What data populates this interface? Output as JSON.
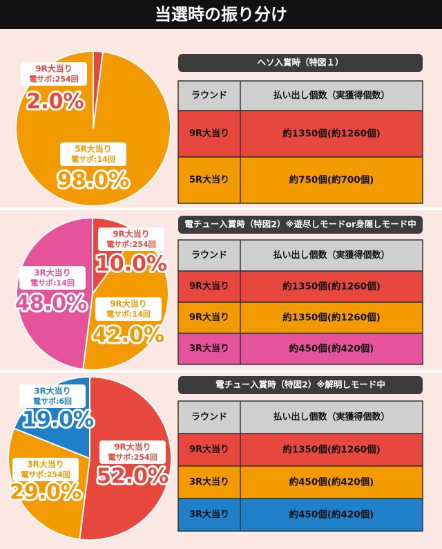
{
  "header": {
    "title": "当選時の振り分け"
  },
  "chart_data": [
    {
      "type": "pie",
      "categories": [
        "9R大当り",
        "5R大当り"
      ],
      "category_notes": [
        "電サポ:254回",
        "電サポ:14回"
      ],
      "values": [
        2,
        98
      ],
      "value_labels": [
        "2.0%",
        "98.0%"
      ],
      "colors": [
        "#e8473d",
        "#f39a00"
      ]
    },
    {
      "type": "pie",
      "categories": [
        "9R大当り",
        "9R大当り",
        "3R大当り"
      ],
      "category_notes": [
        "電サポ:254回",
        "電サポ:14回",
        "電サポ:14回"
      ],
      "values": [
        10,
        42,
        48
      ],
      "value_labels": [
        "10.0%",
        "42.0%",
        "48.0%"
      ],
      "colors": [
        "#e8473d",
        "#f39a00",
        "#e5549a"
      ]
    },
    {
      "type": "pie",
      "categories": [
        "9R大当り",
        "3R大当り",
        "3R大当り"
      ],
      "category_notes": [
        "電サポ:254回",
        "電サポ:254回",
        "電サポ:6回"
      ],
      "values": [
        52,
        29,
        19
      ],
      "value_labels": [
        "52.0%",
        "29.0%",
        "19.0%"
      ],
      "colors": [
        "#e8473d",
        "#f39a00",
        "#1f7fc8"
      ]
    }
  ],
  "tables": [
    {
      "title": "ヘソ入賞時（特図１）",
      "columns": [
        "ラウンド",
        "払い出し個数（実獲得個数）"
      ],
      "rows": [
        [
          "9R大当り",
          "約1350個(約1260個)"
        ],
        [
          "5R大当り",
          "約750個(約700個)"
        ]
      ],
      "row_colors": [
        "#e8473d",
        "#f39a00"
      ]
    },
    {
      "title": "電チュー入賞時（特図2）※遊尽しモードor身隠しモード中",
      "columns": [
        "ラウンド",
        "払い出し個数（実獲得個数）"
      ],
      "rows": [
        [
          "9R大当り",
          "約1350個(約1260個)"
        ],
        [
          "9R大当り",
          "約1350個(約1260個)"
        ],
        [
          "3R大当り",
          "約450個(約420個)"
        ]
      ],
      "row_colors": [
        "#e8473d",
        "#f39a00",
        "#e5549a"
      ]
    },
    {
      "title": "電チュー入賞時（特図2）※解明しモード中",
      "columns": [
        "ラウンド",
        "払い出し個数（実獲得個数）"
      ],
      "rows": [
        [
          "9R大当り",
          "約1350個(約1260個)"
        ],
        [
          "3R大当り",
          "約450個(約420個)"
        ],
        [
          "3R大当り",
          "約450個(約420個)"
        ]
      ],
      "row_colors": [
        "#e8473d",
        "#f39a00",
        "#1f7fc8"
      ]
    }
  ]
}
